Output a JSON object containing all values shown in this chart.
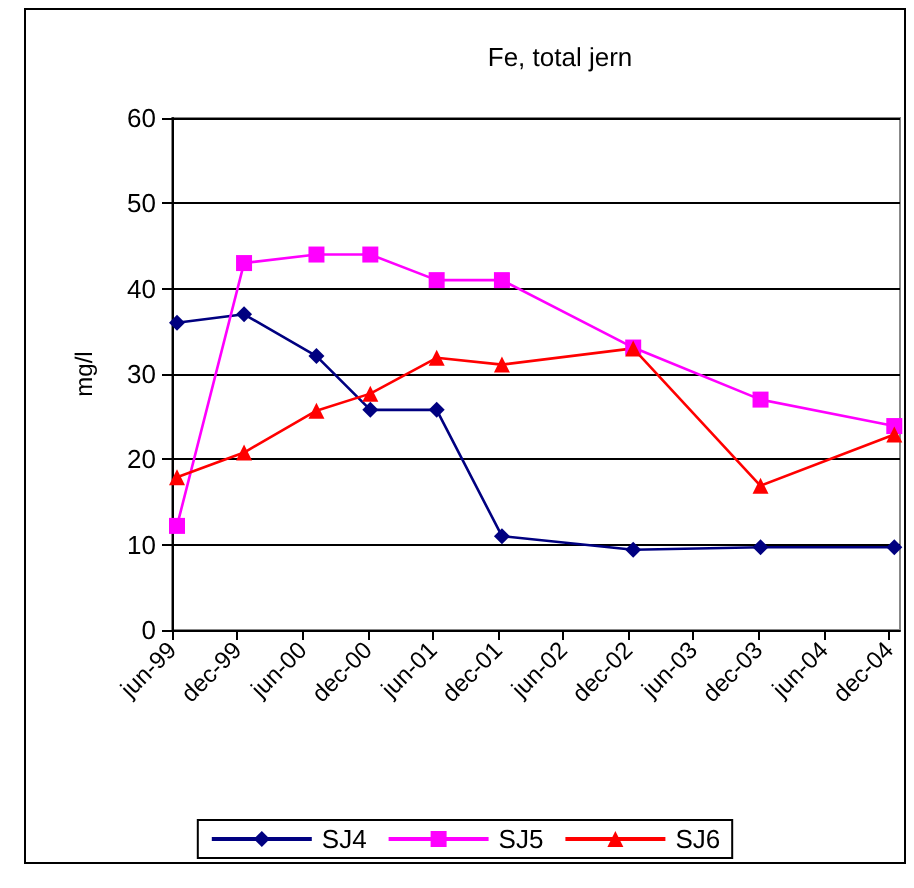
{
  "chart_data": {
    "type": "line",
    "title": "Fe, total jern",
    "ylabel": "mg/l",
    "x": [
      "1999-06-15",
      "1999-12-20",
      "2000-07-10",
      "2000-12-08",
      "2001-06-12",
      "2001-12-12",
      "2002-12-15",
      "2003-12-07",
      "2004-12-16"
    ],
    "xlim": [
      "1999-06-01",
      "2005-01-01"
    ],
    "xticks": [
      {
        "value": "1999-06-01",
        "label": "jun-99"
      },
      {
        "value": "1999-12-01",
        "label": "dec-99"
      },
      {
        "value": "2000-06-01",
        "label": "jun-00"
      },
      {
        "value": "2000-12-01",
        "label": "dec-00"
      },
      {
        "value": "2001-06-01",
        "label": "jun-01"
      },
      {
        "value": "2001-12-01",
        "label": "dec-01"
      },
      {
        "value": "2002-06-01",
        "label": "jun-02"
      },
      {
        "value": "2002-12-01",
        "label": "dec-02"
      },
      {
        "value": "2003-06-01",
        "label": "jun-03"
      },
      {
        "value": "2003-12-01",
        "label": "dec-03"
      },
      {
        "value": "2004-06-01",
        "label": "jun-04"
      },
      {
        "value": "2004-12-01",
        "label": "dec-04"
      }
    ],
    "ylim": [
      0,
      60
    ],
    "yticks": [
      0,
      10,
      20,
      30,
      40,
      50,
      60
    ],
    "grid": "y",
    "legend": "bottom",
    "series": [
      {
        "name": "SJ4",
        "color": "#000080",
        "marker": "diamond",
        "values": [
          36,
          37,
          32.1,
          25.8,
          25.8,
          11,
          9.4,
          9.7,
          9.7
        ]
      },
      {
        "name": "SJ5",
        "color": "#ff00ff",
        "marker": "square",
        "values": [
          12.2,
          43,
          44,
          44,
          41,
          41,
          33.1,
          27,
          23.9
        ]
      },
      {
        "name": "SJ6",
        "color": "#ff0000",
        "marker": "triangle",
        "values": [
          17.9,
          20.8,
          25.7,
          27.7,
          31.9,
          31.1,
          33,
          16.9,
          22.9
        ]
      }
    ]
  }
}
